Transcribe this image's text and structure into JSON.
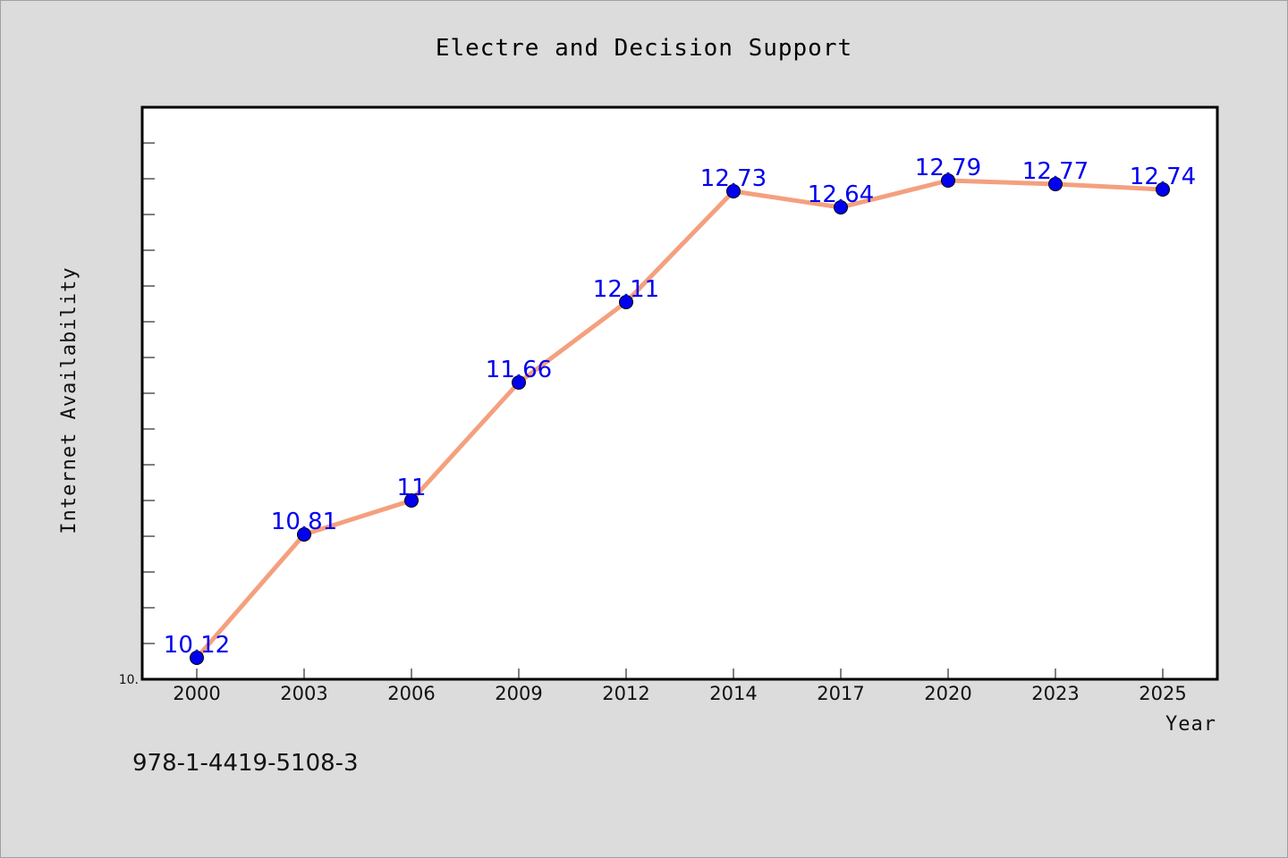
{
  "chart_data": {
    "type": "line",
    "title": "Electre and Decision Support",
    "xlabel": "Year",
    "ylabel": "Internet Availability",
    "categories": [
      "2000",
      "2003",
      "2006",
      "2009",
      "2012",
      "2014",
      "2017",
      "2020",
      "2023",
      "2025"
    ],
    "series": [
      {
        "values": [
          10.12,
          10.81,
          11.0,
          11.66,
          12.11,
          12.73,
          12.64,
          12.79,
          12.77,
          12.74
        ],
        "labels": [
          "10.12",
          "10.81",
          "11",
          "11.66",
          "12.11",
          "12.73",
          "12.64",
          "12.79",
          "12.77",
          "12.74"
        ],
        "line_color": "#f4a07e",
        "marker_color": "#0000ee"
      }
    ],
    "ylim": [
      10.0,
      13.2
    ],
    "y_tick_labels": [
      "10."
    ],
    "grid": false,
    "legend": "none"
  },
  "footer_text": "978-1-4419-5108-3"
}
